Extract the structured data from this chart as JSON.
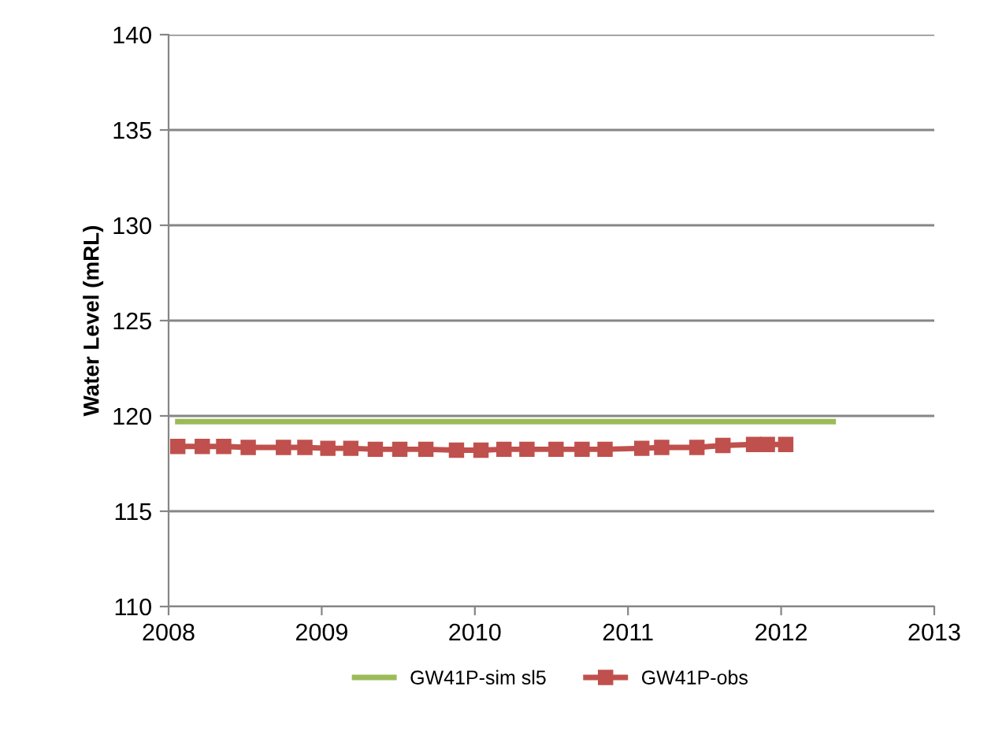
{
  "chart_data": {
    "type": "line",
    "ylabel": "Water Level (mRL)",
    "xlim": [
      2008,
      2013
    ],
    "xticks": [
      2008,
      2009,
      2010,
      2011,
      2012,
      2013
    ],
    "ylim": [
      110,
      140
    ],
    "yticks": [
      110,
      115,
      120,
      125,
      130,
      135,
      140
    ],
    "grid": "y",
    "legend": "bottom",
    "series": [
      {
        "name": "GW41P-sim sl5",
        "color": "#9bbb59",
        "marker": "none",
        "x": [
          2008.06,
          2012.34
        ],
        "values": [
          119.7,
          119.7
        ]
      },
      {
        "name": "GW41P-obs",
        "color": "#c0504d",
        "marker": "square",
        "x": [
          2008.06,
          2008.22,
          2008.36,
          2008.52,
          2008.75,
          2008.89,
          2009.04,
          2009.19,
          2009.35,
          2009.51,
          2009.68,
          2009.88,
          2010.04,
          2010.19,
          2010.34,
          2010.53,
          2010.7,
          2010.85,
          2011.09,
          2011.22,
          2011.45,
          2011.62,
          2011.82,
          2011.91,
          2012.03
        ],
        "values": [
          118.4,
          118.4,
          118.4,
          118.35,
          118.35,
          118.35,
          118.3,
          118.3,
          118.25,
          118.25,
          118.25,
          118.2,
          118.2,
          118.25,
          118.25,
          118.25,
          118.25,
          118.25,
          118.3,
          118.35,
          118.35,
          118.45,
          118.5,
          118.5,
          118.5
        ]
      }
    ]
  }
}
